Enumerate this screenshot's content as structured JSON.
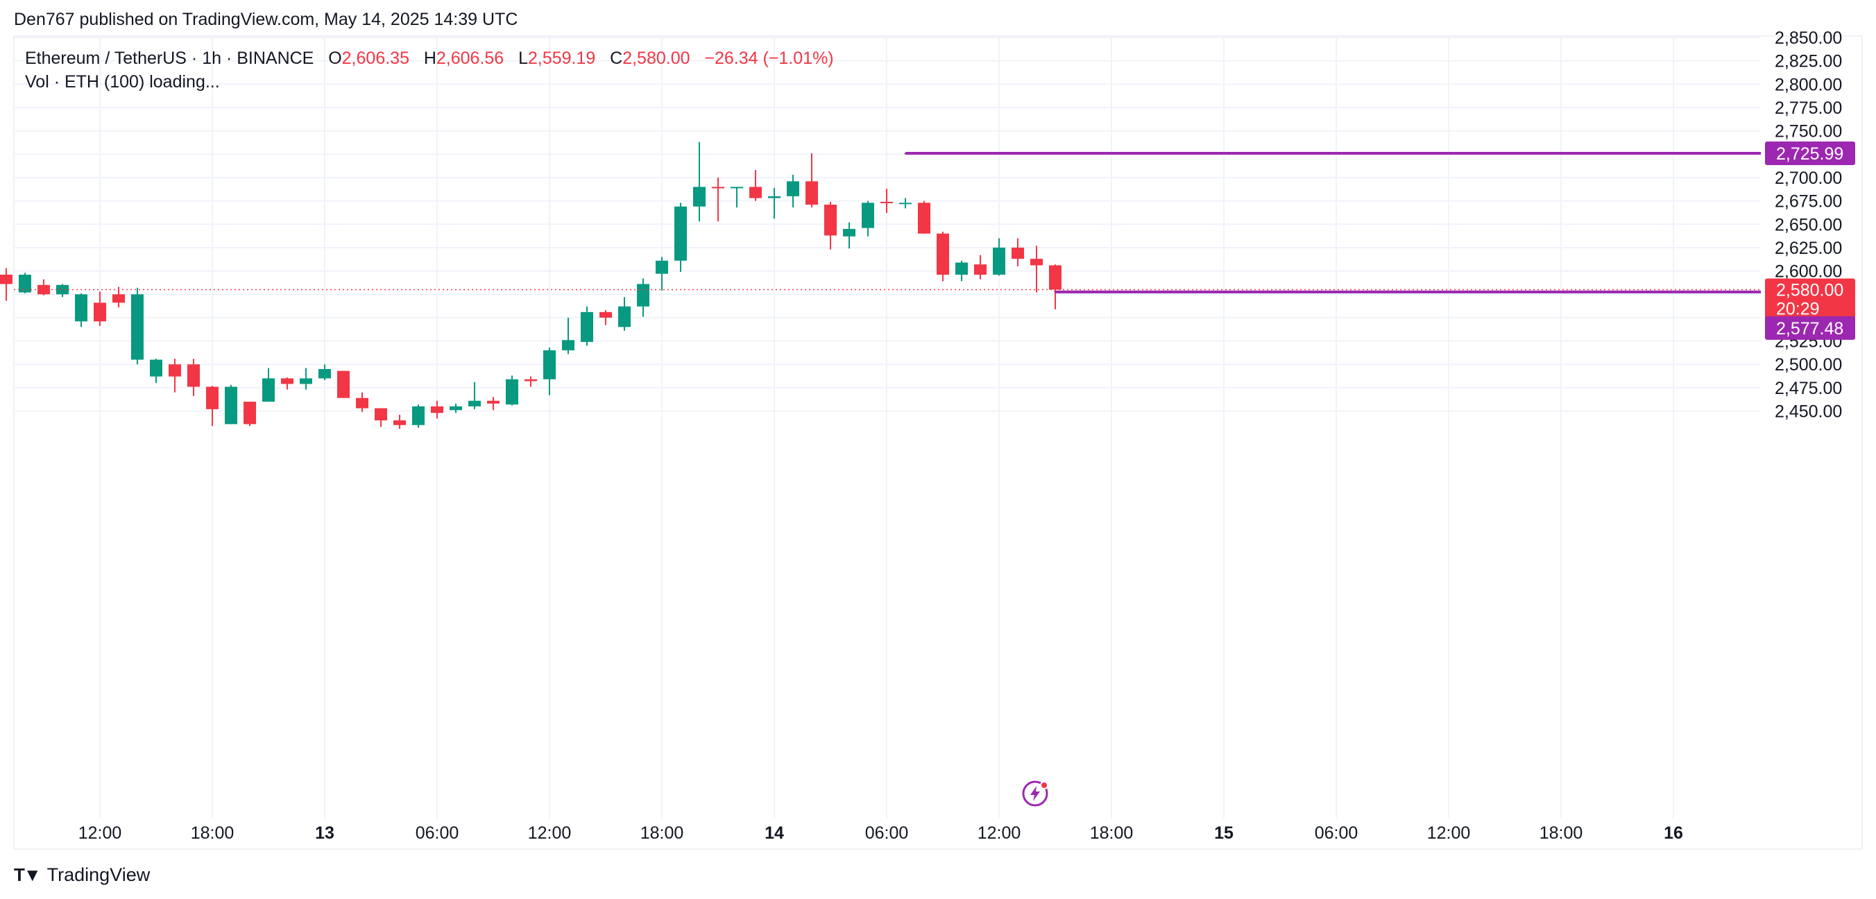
{
  "header": {
    "published_text": "Den767 published on TradingView.com, May 14, 2025 14:39 UTC"
  },
  "legend": {
    "symbol": "Ethereum / TetherUS · 1h · BINANCE",
    "o_label": "O",
    "o_value": "2,606.35",
    "h_label": "H",
    "h_value": "2,606.56",
    "l_label": "L",
    "l_value": "2,559.19",
    "c_label": "C",
    "c_value": "2,580.00",
    "change": "−26.34 (−1.01%)",
    "vol_text": "Vol · ETH (100) loading..."
  },
  "footer": {
    "brand": "TradingView"
  },
  "colors": {
    "up": "#089981",
    "down": "#f23645",
    "level": "#9c27b0",
    "grid": "#f0f3fa",
    "text": "#131722"
  },
  "chart_data": {
    "type": "candlestick",
    "interval_hours": 1,
    "ylim": [
      2435,
      2850
    ],
    "y_ticks": [
      "2,450.00",
      "2,475.00",
      "2,500.00",
      "2,525.00",
      "2,550.00",
      "2,575.00",
      "2,600.00",
      "2,625.00",
      "2,650.00",
      "2,675.00",
      "2,700.00",
      "2,725.00",
      "2,750.00",
      "2,775.00",
      "2,800.00",
      "2,825.00",
      "2,850.00"
    ],
    "y_tick_values": [
      2450,
      2475,
      2500,
      2525,
      2550,
      2575,
      2600,
      2625,
      2650,
      2675,
      2700,
      2725,
      2750,
      2775,
      2800,
      2825,
      2850
    ],
    "x_ticks": [
      {
        "label": "12:00",
        "hour": 12,
        "bold": false
      },
      {
        "label": "18:00",
        "hour": 18,
        "bold": false
      },
      {
        "label": "13",
        "hour": 24,
        "bold": true
      },
      {
        "label": "06:00",
        "hour": 30,
        "bold": false
      },
      {
        "label": "12:00",
        "hour": 36,
        "bold": false
      },
      {
        "label": "18:00",
        "hour": 42,
        "bold": false
      },
      {
        "label": "14",
        "hour": 48,
        "bold": true
      },
      {
        "label": "06:00",
        "hour": 54,
        "bold": false
      },
      {
        "label": "12:00",
        "hour": 60,
        "bold": false
      },
      {
        "label": "18:00",
        "hour": 66,
        "bold": false
      },
      {
        "label": "15",
        "hour": 72,
        "bold": true
      },
      {
        "label": "06:00",
        "hour": 78,
        "bold": false
      },
      {
        "label": "12:00",
        "hour": 84,
        "bold": false
      },
      {
        "label": "18:00",
        "hour": 90,
        "bold": false
      },
      {
        "label": "16",
        "hour": 96,
        "bold": true
      }
    ],
    "first_candle_hour": 7,
    "candles": [
      [
        2596,
        2586,
        2603,
        2568
      ],
      [
        2577,
        2596,
        2598,
        2576
      ],
      [
        2585,
        2575,
        2591,
        2574
      ],
      [
        2575,
        2585,
        2586,
        2572
      ],
      [
        2546,
        2575,
        2576,
        2540
      ],
      [
        2566,
        2546,
        2578,
        2541
      ],
      [
        2575,
        2566,
        2583,
        2561
      ],
      [
        2505,
        2575,
        2582,
        2500
      ],
      [
        2487,
        2505,
        2506,
        2480
      ],
      [
        2500,
        2487,
        2506,
        2470
      ],
      [
        2500,
        2476,
        2506,
        2466
      ],
      [
        2476,
        2452,
        2477,
        2434
      ],
      [
        2436,
        2476,
        2478,
        2436
      ],
      [
        2460,
        2436,
        2460,
        2434
      ],
      [
        2460,
        2485,
        2496,
        2460
      ],
      [
        2485,
        2479,
        2486,
        2473
      ],
      [
        2479,
        2485,
        2496,
        2473
      ],
      [
        2485,
        2495,
        2500,
        2483
      ],
      [
        2493,
        2464,
        2493,
        2464
      ],
      [
        2464,
        2453,
        2470,
        2449
      ],
      [
        2453,
        2440,
        2453,
        2433
      ],
      [
        2440,
        2435,
        2446,
        2431
      ],
      [
        2435,
        2455,
        2457,
        2432
      ],
      [
        2455,
        2448,
        2461,
        2442
      ],
      [
        2451,
        2455,
        2458,
        2448
      ],
      [
        2455,
        2461,
        2481,
        2452
      ],
      [
        2461,
        2458,
        2465,
        2451
      ],
      [
        2457,
        2484,
        2488,
        2456
      ],
      [
        2484,
        2482,
        2487,
        2476
      ],
      [
        2484,
        2515,
        2518,
        2467
      ],
      [
        2515,
        2526,
        2550,
        2511
      ],
      [
        2524,
        2556,
        2562,
        2520
      ],
      [
        2556,
        2550,
        2558,
        2542
      ],
      [
        2540,
        2562,
        2572,
        2536
      ],
      [
        2562,
        2586,
        2592,
        2551
      ],
      [
        2597,
        2611,
        2615,
        2579
      ],
      [
        2611,
        2669,
        2673,
        2599
      ],
      [
        2669,
        2690,
        2738,
        2653
      ],
      [
        2690,
        2689,
        2700,
        2653
      ],
      [
        2689,
        2690,
        2690,
        2668
      ],
      [
        2690,
        2678,
        2708,
        2675
      ],
      [
        2678,
        2680,
        2689,
        2656
      ],
      [
        2680,
        2696,
        2703,
        2668
      ],
      [
        2696,
        2671,
        2726,
        2668
      ],
      [
        2671,
        2638,
        2674,
        2623
      ],
      [
        2637,
        2645,
        2652,
        2624
      ],
      [
        2646,
        2673,
        2675,
        2637
      ],
      [
        2674,
        2673,
        2688,
        2662
      ],
      [
        2673,
        2673,
        2678,
        2667
      ],
      [
        2673,
        2640,
        2675,
        2640
      ],
      [
        2640,
        2596,
        2642,
        2589
      ],
      [
        2596,
        2609,
        2611,
        2589
      ],
      [
        2607,
        2596,
        2617,
        2591
      ],
      [
        2596,
        2625,
        2635,
        2595
      ],
      [
        2625,
        2613,
        2635,
        2605
      ],
      [
        2613,
        2606,
        2627,
        2577
      ],
      [
        2606,
        2580,
        2607,
        2559
      ]
    ],
    "levels": [
      {
        "price": 2725.99,
        "label": "2,725.99",
        "start_hour": 55
      },
      {
        "price": 2577.48,
        "label": "2,577.48",
        "start_hour": 63
      }
    ],
    "last_price": {
      "label": "2,580.00",
      "countdown": "20:29",
      "value": 2580.0
    }
  }
}
